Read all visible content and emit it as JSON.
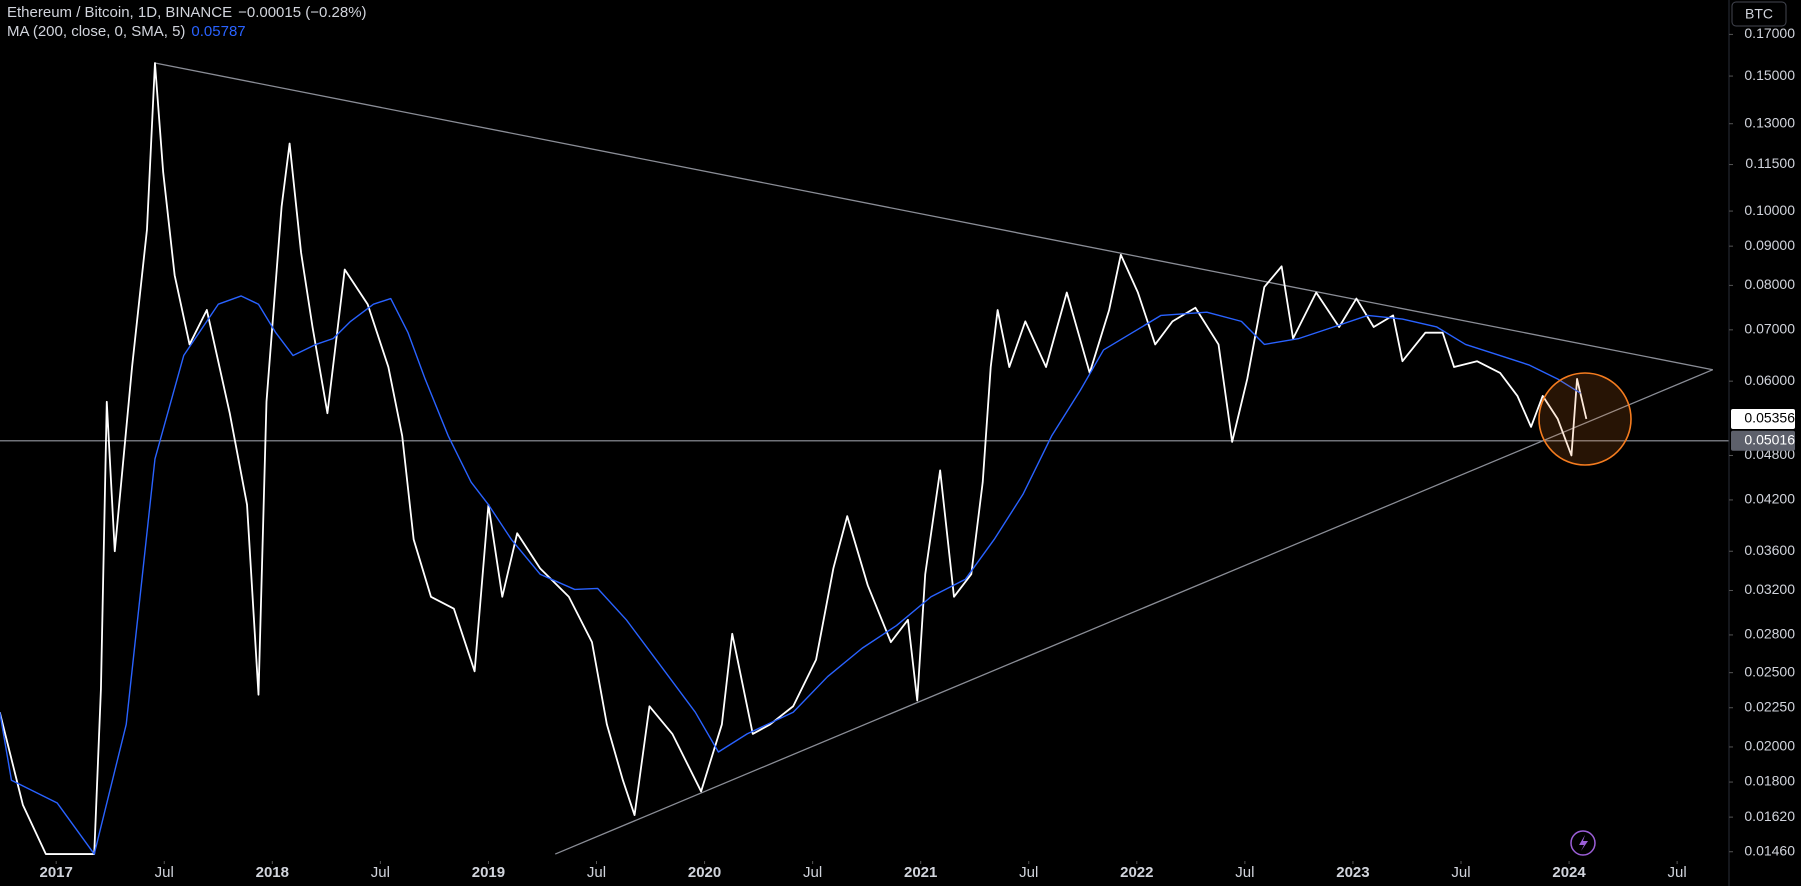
{
  "chart_data": {
    "type": "line",
    "title": "Ethereum / Bitcoin, 1D, BINANCE",
    "change": "−0.00015 (−0.28%)",
    "currency": "BTC",
    "log_scale": true,
    "xlim": [
      2016.74,
      2024.74
    ],
    "ylim": [
      0.0142,
      0.1885
    ],
    "xticks": [
      2017,
      {
        "value": 2017.5,
        "label": "Jul"
      },
      2018,
      {
        "value": 2018.5,
        "label": "Jul"
      },
      2019,
      {
        "value": 2019.5,
        "label": "Jul"
      },
      2020,
      {
        "value": 2020.5,
        "label": "Jul"
      },
      2021,
      {
        "value": 2021.5,
        "label": "Jul"
      },
      2022,
      {
        "value": 2022.5,
        "label": "Jul"
      },
      2023,
      {
        "value": 2023.5,
        "label": "Jul"
      },
      2024,
      {
        "value": 2024.5,
        "label": "Jul"
      }
    ],
    "yticks": [
      {
        "value": 0.17,
        "label": "0.17000"
      },
      {
        "value": 0.15,
        "label": "0.15000"
      },
      {
        "value": 0.13,
        "label": "0.13000"
      },
      {
        "value": 0.115,
        "label": "0.11500"
      },
      {
        "value": 0.1,
        "label": "0.10000"
      },
      {
        "value": 0.09,
        "label": "0.09000"
      },
      {
        "value": 0.08,
        "label": "0.08000"
      },
      {
        "value": 0.07,
        "label": "0.07000"
      },
      {
        "value": 0.06,
        "label": "0.06000"
      },
      {
        "value": 0.048,
        "label": "0.04800"
      },
      {
        "value": 0.042,
        "label": "0.04200"
      },
      {
        "value": 0.036,
        "label": "0.03600"
      },
      {
        "value": 0.032,
        "label": "0.03200"
      },
      {
        "value": 0.028,
        "label": "0.02800"
      },
      {
        "value": 0.025,
        "label": "0.02500"
      },
      {
        "value": 0.0225,
        "label": "0.02250"
      },
      {
        "value": 0.02,
        "label": "0.02000"
      },
      {
        "value": 0.018,
        "label": "0.01800"
      },
      {
        "value": 0.0162,
        "label": "0.01620"
      },
      {
        "value": 0.0146,
        "label": "0.01460"
      }
    ],
    "hline": 0.05016,
    "series": [
      {
        "color": "#ffffff",
        "x": [
          2016.739,
          2016.846,
          2016.952,
          2017.176,
          2017.207,
          2017.234,
          2017.271,
          2017.351,
          2017.42,
          2017.457,
          2017.495,
          2017.548,
          2017.617,
          2017.697,
          2017.803,
          2017.883,
          2017.936,
          2017.973,
          2018.043,
          2018.08,
          2018.133,
          2018.186,
          2018.255,
          2018.335,
          2018.441,
          2018.537,
          2018.601,
          2018.654,
          2018.734,
          2018.84,
          2018.936,
          2019.0,
          2019.064,
          2019.133,
          2019.239,
          2019.372,
          2019.479,
          2019.548,
          2019.622,
          2019.676,
          2019.745,
          2019.851,
          2019.984,
          2020.08,
          2020.128,
          2020.223,
          2020.303,
          2020.41,
          2020.516,
          2020.596,
          2020.66,
          2020.755,
          2020.862,
          2020.941,
          2020.984,
          2021.021,
          2021.09,
          2021.154,
          2021.234,
          2021.287,
          2021.324,
          2021.356,
          2021.41,
          2021.484,
          2021.58,
          2021.676,
          2021.782,
          2021.872,
          2021.926,
          2022.005,
          2022.085,
          2022.165,
          2022.271,
          2022.378,
          2022.441,
          2022.511,
          2022.59,
          2022.67,
          2022.723,
          2022.83,
          2022.936,
          2023.016,
          2023.096,
          2023.186,
          2023.229,
          2023.335,
          2023.415,
          2023.468,
          2023.574,
          2023.681,
          2023.761,
          2023.824,
          2023.878,
          2023.947,
          2024.011,
          2024.037,
          2024.08
        ],
        "values": [
          0.0222,
          0.0168,
          0.0145,
          0.0145,
          0.0238,
          0.0564,
          0.036,
          0.0626,
          0.0946,
          0.156,
          0.1124,
          0.0825,
          0.067,
          0.0743,
          0.0545,
          0.0414,
          0.0234,
          0.0564,
          0.1014,
          0.1225,
          0.0883,
          0.0706,
          0.0545,
          0.0839,
          0.0756,
          0.0626,
          0.0509,
          0.0373,
          0.0314,
          0.0303,
          0.0251,
          0.0414,
          0.0314,
          0.038,
          0.0342,
          0.0314,
          0.0274,
          0.0214,
          0.0181,
          0.0163,
          0.0226,
          0.0208,
          0.0175,
          0.0214,
          0.0281,
          0.0208,
          0.0214,
          0.0226,
          0.026,
          0.0342,
          0.04,
          0.0325,
          0.0274,
          0.0293,
          0.023,
          0.0336,
          0.0459,
          0.0314,
          0.0336,
          0.0443,
          0.0626,
          0.0743,
          0.0626,
          0.0718,
          0.0626,
          0.0783,
          0.0615,
          0.0743,
          0.0877,
          0.0783,
          0.067,
          0.0718,
          0.0748,
          0.067,
          0.05,
          0.0604,
          0.0796,
          0.0847,
          0.0682,
          0.0783,
          0.0706,
          0.0769,
          0.0706,
          0.0731,
          0.0637,
          0.0694,
          0.0694,
          0.0626,
          0.0637,
          0.0615,
          0.0574,
          0.0523,
          0.0574,
          0.0536,
          0.048,
          0.0604,
          0.05356
        ]
      },
      {
        "name": "MA (200, close, 0, SMA, 5)",
        "color": "#2962ff",
        "x": [
          2016.739,
          2016.793,
          2017.005,
          2017.176,
          2017.324,
          2017.457,
          2017.59,
          2017.75,
          2017.856,
          2017.936,
          2018.016,
          2018.096,
          2018.202,
          2018.282,
          2018.362,
          2018.468,
          2018.548,
          2018.628,
          2018.707,
          2018.814,
          2018.92,
          2019.0,
          2019.106,
          2019.239,
          2019.399,
          2019.505,
          2019.638,
          2019.798,
          2019.957,
          2020.064,
          2020.197,
          2020.41,
          2020.569,
          2020.729,
          2020.888,
          2021.048,
          2021.207,
          2021.34,
          2021.473,
          2021.606,
          2021.739,
          2021.846,
          2021.979,
          2022.112,
          2022.324,
          2022.484,
          2022.59,
          2022.75,
          2022.91,
          2023.069,
          2023.229,
          2023.388,
          2023.521,
          2023.681,
          2023.814,
          2023.947,
          2024.053
        ],
        "values": [
          0.0222,
          0.0181,
          0.0169,
          0.0145,
          0.0214,
          0.0475,
          0.0648,
          0.0756,
          0.0775,
          0.0756,
          0.0694,
          0.0648,
          0.067,
          0.0682,
          0.0718,
          0.0756,
          0.0769,
          0.0694,
          0.0604,
          0.0509,
          0.0443,
          0.0414,
          0.0373,
          0.0336,
          0.0321,
          0.0322,
          0.0293,
          0.0255,
          0.0222,
          0.0197,
          0.0208,
          0.0222,
          0.0247,
          0.0269,
          0.0288,
          0.0314,
          0.0331,
          0.0373,
          0.0427,
          0.0509,
          0.0584,
          0.0659,
          0.0694,
          0.0731,
          0.0738,
          0.0718,
          0.067,
          0.0682,
          0.0706,
          0.0731,
          0.0723,
          0.0706,
          0.067,
          0.0648,
          0.063,
          0.0604,
          0.05787
        ]
      }
    ],
    "trendlines": [
      {
        "x": [
          2017.457,
          2024.665
        ],
        "values": [
          0.156,
          0.0621
        ]
      },
      {
        "x": [
          2019.309,
          2024.665
        ],
        "values": [
          0.0145,
          0.0621
        ]
      }
    ]
  }
}
